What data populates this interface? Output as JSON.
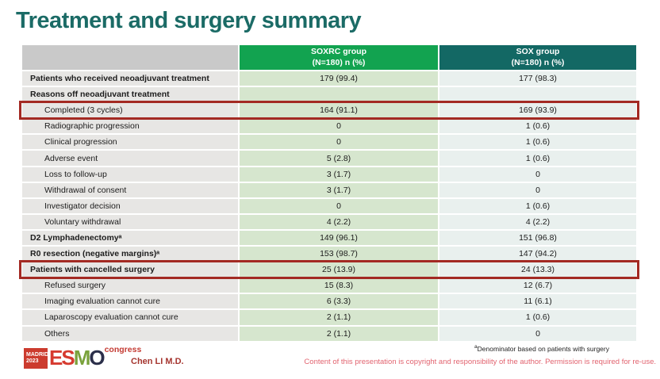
{
  "title": "Treatment and surgery summary",
  "table": {
    "columns": [
      {
        "line1": "SOXRC group",
        "line2": "(N=180)  n (%)"
      },
      {
        "line1": "SOX group",
        "line2": "(N=180)  n (%)"
      }
    ],
    "rows": [
      {
        "label": "Patients who received neoadjuvant treatment",
        "soxrc": "179 (99.4)",
        "sox": "177 (98.3)",
        "bold": true
      },
      {
        "label": "Reasons off neoadjuvant treatment",
        "soxrc": "",
        "sox": "",
        "bold": true
      },
      {
        "label": "Completed (3 cycles)",
        "soxrc": "164 (91.1)",
        "sox": "169 (93.9)",
        "indent": true,
        "highlight": true
      },
      {
        "label": "Radiographic progression",
        "soxrc": "0",
        "sox": "1 (0.6)",
        "indent": true
      },
      {
        "label": "Clinical progression",
        "soxrc": "0",
        "sox": "1 (0.6)",
        "indent": true
      },
      {
        "label": "Adverse event",
        "soxrc": "5 (2.8)",
        "sox": "1 (0.6)",
        "indent": true
      },
      {
        "label": "Loss to follow-up",
        "soxrc": "3 (1.7)",
        "sox": "0",
        "indent": true
      },
      {
        "label": "Withdrawal of consent",
        "soxrc": "3 (1.7)",
        "sox": "0",
        "indent": true
      },
      {
        "label": "Investigator decision",
        "soxrc": "0",
        "sox": "1 (0.6)",
        "indent": true
      },
      {
        "label": "Voluntary withdrawal",
        "soxrc": "4 (2.2)",
        "sox": "4 (2.2)",
        "indent": true
      },
      {
        "label": "D2 Lymphadenectomyᵃ",
        "soxrc": "149 (96.1)",
        "sox": "151 (96.8)",
        "bold": true
      },
      {
        "label": "R0 resection (negative margins)ᵃ",
        "soxrc": "153 (98.7)",
        "sox": "147 (94.2)",
        "bold": true
      },
      {
        "label": "Patients with cancelled surgery",
        "soxrc": "25 (13.9)",
        "sox": "24 (13.3)",
        "bold": true,
        "highlight": true
      },
      {
        "label": "Refused surgery",
        "soxrc": "15 (8.3)",
        "sox": "12 (6.7)",
        "indent": true
      },
      {
        "label": "Imaging evaluation cannot cure",
        "soxrc": "6 (3.3)",
        "sox": "11 (6.1)",
        "indent": true
      },
      {
        "label": "Laparoscopy evaluation cannot cure",
        "soxrc": "2 (1.1)",
        "sox": "1 (0.6)",
        "indent": true
      },
      {
        "label": "Others",
        "soxrc": "2 (1.1)",
        "sox": "0",
        "indent": true
      }
    ]
  },
  "footer": {
    "logo": {
      "badge_line1": "MADRID",
      "badge_line2": "2023",
      "letters": [
        {
          "ch": "E",
          "color": "#d63a2f"
        },
        {
          "ch": "S",
          "color": "#d63a2f"
        },
        {
          "ch": "M",
          "color": "#7aa23c"
        },
        {
          "ch": "O",
          "color": "#2b2f4a"
        }
      ],
      "congress": "congress"
    },
    "author": "Chen LI M.D.",
    "footnote_sup": "a",
    "footnote": "Denominator based on patients with surgery",
    "copyright": "Content of this presentation is copyright and responsibility of the author. Permission is required for re-use."
  },
  "colors": {
    "title": "#1b6b66",
    "header_soxrc": "#12a350",
    "header_sox": "#136864",
    "label_cell": "#e7e6e4",
    "soxrc_cell": "#d6e6ce",
    "sox_cell": "#e9f0ee",
    "highlight_border": "#a32a23"
  }
}
